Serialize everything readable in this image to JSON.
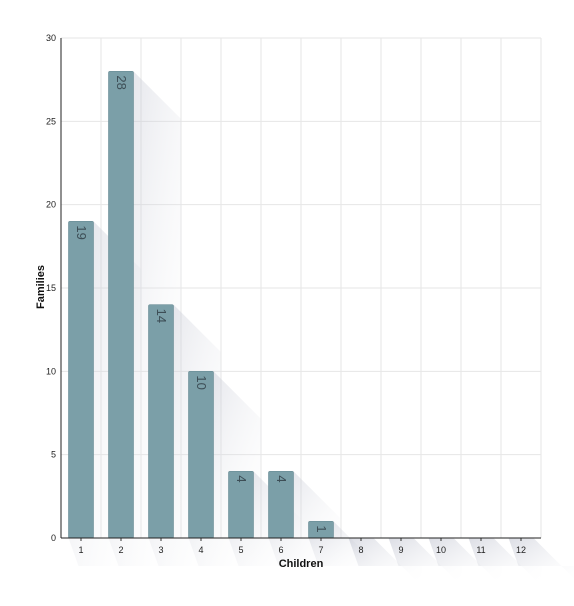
{
  "chart_data": {
    "type": "bar",
    "categories": [
      "1",
      "2",
      "3",
      "4",
      "5",
      "6",
      "7",
      "8",
      "9",
      "10",
      "11",
      "12"
    ],
    "values": [
      19,
      28,
      14,
      10,
      4,
      4,
      1,
      0,
      0,
      0,
      0,
      0
    ],
    "data_labels": [
      "19",
      "28",
      "14",
      "10",
      "4",
      "4",
      "1",
      "",
      "",
      "",
      "",
      ""
    ],
    "xlabel": "Children",
    "ylabel": "Families",
    "ylim": [
      0,
      30
    ],
    "yticks": [
      "0",
      "5",
      "10",
      "15",
      "20",
      "25",
      "30"
    ],
    "grid": true,
    "bar_color": "#7b9fa8",
    "bar_edge_color": "#6a8d96",
    "grid_color": "#e6e6e6",
    "label_color": "#3d4e56"
  }
}
